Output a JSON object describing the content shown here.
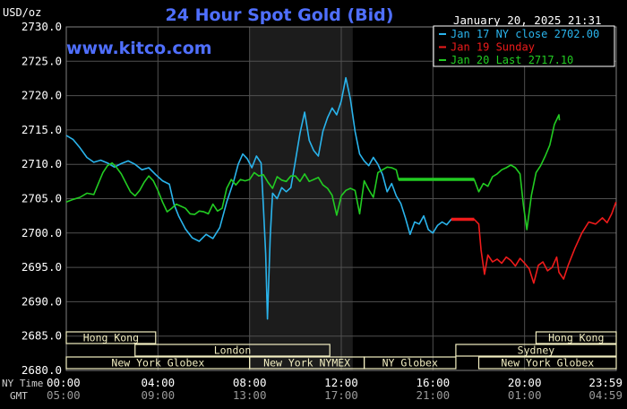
{
  "chart_data": {
    "type": "line",
    "title": "24 Hour Spot Gold (Bid)",
    "ylabel": "USD/oz",
    "watermark": "www.kitco.com",
    "timestamp": "January 20, 2025 21:31",
    "ylim": [
      2680,
      2730
    ],
    "y_ticks": [
      "2680.0",
      "2685.0",
      "2690.0",
      "2695.0",
      "2700.0",
      "2705.0",
      "2710.0",
      "2715.0",
      "2720.0",
      "2725.0",
      "2730.0"
    ],
    "x_range": [
      0,
      24
    ],
    "x_row_label_ny": "NY Time",
    "x_row_label_gmt": "GMT",
    "x_ticks_ny": [
      "00:00",
      "04:00",
      "08:00",
      "12:00",
      "16:00",
      "20:00",
      "23:59"
    ],
    "x_ticks_gmt": [
      "05:00",
      "09:00",
      "13:00",
      "17:00",
      "21:00",
      "01:00",
      "04:59"
    ],
    "shaded_region": [
      8,
      12.5
    ],
    "colors": {
      "background": "#000000",
      "grid": "#505050",
      "title": "#4f6fff",
      "series_jan17": "#2ab4ec",
      "series_jan19": "#ee1b1b",
      "series_jan20": "#22cc22",
      "session_fill": "#f3efc2",
      "session_text": "#000000"
    },
    "sessions": [
      {
        "label": "Hong Kong",
        "row": 0,
        "start": 0,
        "end": 3.9
      },
      {
        "label": "Hong Kong",
        "row": 0,
        "start": 20.5,
        "end": 24
      },
      {
        "label": "London",
        "row": 1,
        "start": 3.0,
        "end": 11.5
      },
      {
        "label": "Sydney",
        "row": 1,
        "start": 17.0,
        "end": 24
      },
      {
        "label": "New York Globex",
        "row": 2,
        "start": 0,
        "end": 8.0
      },
      {
        "label": "New York NYMEX",
        "row": 2,
        "start": 8.0,
        "end": 13.0
      },
      {
        "label": "NY Globex",
        "row": 2,
        "start": 13.0,
        "end": 17.0
      },
      {
        "label": "New York Globex",
        "row": 2,
        "start": 18.0,
        "end": 24
      }
    ],
    "legend": [
      {
        "label": "Jan 17 NY close 2702.00",
        "color": "#2ab4ec"
      },
      {
        "label": "Jan 19 Sunday",
        "color": "#ee1b1b"
      },
      {
        "label": "Jan 20 Last 2717.10",
        "color": "#22cc22"
      }
    ],
    "series": [
      {
        "key": "jan17",
        "color": "#2ab4ec",
        "points": [
          [
            0,
            2714.2
          ],
          [
            0.3,
            2713.6
          ],
          [
            0.6,
            2712.4
          ],
          [
            0.9,
            2711
          ],
          [
            1.2,
            2710.3
          ],
          [
            1.5,
            2710.6
          ],
          [
            1.8,
            2710.2
          ],
          [
            2.1,
            2709.6
          ],
          [
            2.4,
            2710.1
          ],
          [
            2.7,
            2710.5
          ],
          [
            3.0,
            2710
          ],
          [
            3.3,
            2709.2
          ],
          [
            3.6,
            2709.5
          ],
          [
            3.9,
            2708.5
          ],
          [
            4.2,
            2707.6
          ],
          [
            4.5,
            2707.1
          ],
          [
            4.7,
            2704.2
          ],
          [
            4.9,
            2702.5
          ],
          [
            5.2,
            2700.6
          ],
          [
            5.5,
            2699.3
          ],
          [
            5.8,
            2698.8
          ],
          [
            6.1,
            2699.8
          ],
          [
            6.4,
            2699.2
          ],
          [
            6.7,
            2700.8
          ],
          [
            7.0,
            2704.5
          ],
          [
            7.3,
            2707.5
          ],
          [
            7.5,
            2710
          ],
          [
            7.7,
            2711.5
          ],
          [
            7.9,
            2710.8
          ],
          [
            8.1,
            2709.5
          ],
          [
            8.3,
            2711.2
          ],
          [
            8.5,
            2710.2
          ],
          [
            8.6,
            2704
          ],
          [
            8.7,
            2697
          ],
          [
            8.78,
            2687.5
          ],
          [
            8.9,
            2699.5
          ],
          [
            9.0,
            2705.8
          ],
          [
            9.2,
            2705
          ],
          [
            9.4,
            2706.6
          ],
          [
            9.6,
            2706
          ],
          [
            9.8,
            2706.6
          ],
          [
            10.0,
            2710.5
          ],
          [
            10.2,
            2714.5
          ],
          [
            10.4,
            2717.6
          ],
          [
            10.6,
            2713.5
          ],
          [
            10.8,
            2712
          ],
          [
            11.0,
            2711.2
          ],
          [
            11.2,
            2714.8
          ],
          [
            11.4,
            2716.8
          ],
          [
            11.6,
            2718.2
          ],
          [
            11.8,
            2717.2
          ],
          [
            12.0,
            2719.2
          ],
          [
            12.2,
            2722.6
          ],
          [
            12.4,
            2719.5
          ],
          [
            12.6,
            2714.8
          ],
          [
            12.8,
            2711.5
          ],
          [
            13.0,
            2710.5
          ],
          [
            13.2,
            2709.8
          ],
          [
            13.4,
            2711
          ],
          [
            13.6,
            2710
          ],
          [
            13.8,
            2708.5
          ],
          [
            14.0,
            2706
          ],
          [
            14.2,
            2707.2
          ],
          [
            14.4,
            2705.4
          ],
          [
            14.6,
            2704.3
          ],
          [
            14.8,
            2702.2
          ],
          [
            15.0,
            2699.8
          ],
          [
            15.2,
            2701.6
          ],
          [
            15.4,
            2701.3
          ],
          [
            15.6,
            2702.5
          ],
          [
            15.8,
            2700.5
          ],
          [
            16.0,
            2700
          ],
          [
            16.2,
            2701.1
          ],
          [
            16.4,
            2701.6
          ],
          [
            16.6,
            2701.2
          ],
          [
            16.8,
            2702
          ],
          [
            17.3,
            2702
          ]
        ]
      },
      {
        "key": "jan19",
        "color": "#ee1b1b",
        "points": [
          [
            16.8,
            2702
          ],
          [
            17.8,
            2702
          ],
          [
            18.0,
            2701.3
          ],
          [
            18.1,
            2697.5
          ],
          [
            18.25,
            2694
          ],
          [
            18.4,
            2696.8
          ],
          [
            18.6,
            2695.8
          ],
          [
            18.8,
            2696.2
          ],
          [
            19.0,
            2695.6
          ],
          [
            19.2,
            2696.5
          ],
          [
            19.4,
            2696
          ],
          [
            19.6,
            2695.2
          ],
          [
            19.8,
            2696.3
          ],
          [
            20.0,
            2695.6
          ],
          [
            20.2,
            2694.8
          ],
          [
            20.4,
            2692.7
          ],
          [
            20.6,
            2695.3
          ],
          [
            20.8,
            2695.8
          ],
          [
            21.0,
            2694.5
          ],
          [
            21.2,
            2695
          ],
          [
            21.4,
            2696.5
          ],
          [
            21.5,
            2694.3
          ],
          [
            21.7,
            2693.3
          ],
          [
            21.9,
            2695.3
          ],
          [
            22.2,
            2697.8
          ],
          [
            22.5,
            2700
          ],
          [
            22.8,
            2701.6
          ],
          [
            23.1,
            2701.3
          ],
          [
            23.4,
            2702.2
          ],
          [
            23.6,
            2701.5
          ],
          [
            23.8,
            2702.8
          ],
          [
            23.99,
            2704.5
          ]
        ]
      },
      {
        "key": "jan20",
        "color": "#22cc22",
        "points": [
          [
            0,
            2704.5
          ],
          [
            0.3,
            2704.9
          ],
          [
            0.6,
            2705.2
          ],
          [
            0.9,
            2705.8
          ],
          [
            1.2,
            2705.6
          ],
          [
            1.4,
            2707.2
          ],
          [
            1.6,
            2708.8
          ],
          [
            1.8,
            2709.8
          ],
          [
            2.0,
            2710.2
          ],
          [
            2.2,
            2709.5
          ],
          [
            2.4,
            2708.6
          ],
          [
            2.6,
            2707.3
          ],
          [
            2.8,
            2706
          ],
          [
            3.0,
            2705.4
          ],
          [
            3.2,
            2706.2
          ],
          [
            3.4,
            2707.4
          ],
          [
            3.6,
            2708.3
          ],
          [
            3.8,
            2707.6
          ],
          [
            4.0,
            2706.2
          ],
          [
            4.2,
            2704.5
          ],
          [
            4.4,
            2703.1
          ],
          [
            4.6,
            2703.6
          ],
          [
            4.8,
            2704.2
          ],
          [
            5.0,
            2703.9
          ],
          [
            5.2,
            2703.6
          ],
          [
            5.4,
            2702.8
          ],
          [
            5.6,
            2702.7
          ],
          [
            5.8,
            2703.2
          ],
          [
            6.0,
            2703.1
          ],
          [
            6.2,
            2702.8
          ],
          [
            6.4,
            2704.2
          ],
          [
            6.6,
            2703.2
          ],
          [
            6.8,
            2703.6
          ],
          [
            7.0,
            2706.5
          ],
          [
            7.2,
            2707.8
          ],
          [
            7.4,
            2707
          ],
          [
            7.6,
            2707.8
          ],
          [
            7.8,
            2707.6
          ],
          [
            8.0,
            2707.8
          ],
          [
            8.2,
            2708.8
          ],
          [
            8.4,
            2708.3
          ],
          [
            8.6,
            2708.5
          ],
          [
            8.8,
            2707.4
          ],
          [
            9.0,
            2706.5
          ],
          [
            9.2,
            2708.2
          ],
          [
            9.4,
            2707.7
          ],
          [
            9.6,
            2707.5
          ],
          [
            9.8,
            2708.3
          ],
          [
            10.0,
            2708.3
          ],
          [
            10.2,
            2707.5
          ],
          [
            10.4,
            2708.6
          ],
          [
            10.6,
            2707.5
          ],
          [
            10.8,
            2707.8
          ],
          [
            11.0,
            2708.1
          ],
          [
            11.2,
            2707
          ],
          [
            11.4,
            2706.5
          ],
          [
            11.6,
            2705.5
          ],
          [
            11.8,
            2702.6
          ],
          [
            12.0,
            2705.4
          ],
          [
            12.2,
            2706.2
          ],
          [
            12.4,
            2706.5
          ],
          [
            12.6,
            2706.2
          ],
          [
            12.8,
            2702.8
          ],
          [
            13.0,
            2707.6
          ],
          [
            13.2,
            2706.3
          ],
          [
            13.4,
            2705.2
          ],
          [
            13.6,
            2708.8
          ],
          [
            13.8,
            2709.2
          ],
          [
            14.0,
            2709.6
          ],
          [
            14.2,
            2709.5
          ],
          [
            14.4,
            2709.2
          ],
          [
            14.5,
            2707.8
          ],
          [
            15.0,
            2707.8
          ],
          [
            15.5,
            2707.8
          ],
          [
            16.0,
            2707.8
          ],
          [
            16.5,
            2707.8
          ],
          [
            17.0,
            2707.8
          ],
          [
            17.8,
            2707.8
          ],
          [
            18.0,
            2706
          ],
          [
            18.2,
            2707.2
          ],
          [
            18.4,
            2706.8
          ],
          [
            18.6,
            2708.2
          ],
          [
            18.8,
            2708.6
          ],
          [
            19.0,
            2709.2
          ],
          [
            19.2,
            2709.5
          ],
          [
            19.4,
            2709.9
          ],
          [
            19.6,
            2709.5
          ],
          [
            19.8,
            2708.6
          ],
          [
            19.95,
            2704
          ],
          [
            20.1,
            2700.5
          ],
          [
            20.3,
            2705.5
          ],
          [
            20.5,
            2708.8
          ],
          [
            20.7,
            2709.8
          ],
          [
            20.9,
            2711.2
          ],
          [
            21.1,
            2712.8
          ],
          [
            21.3,
            2715.8
          ],
          [
            21.5,
            2717.2
          ],
          [
            21.52,
            2716.4
          ]
        ]
      }
    ]
  }
}
